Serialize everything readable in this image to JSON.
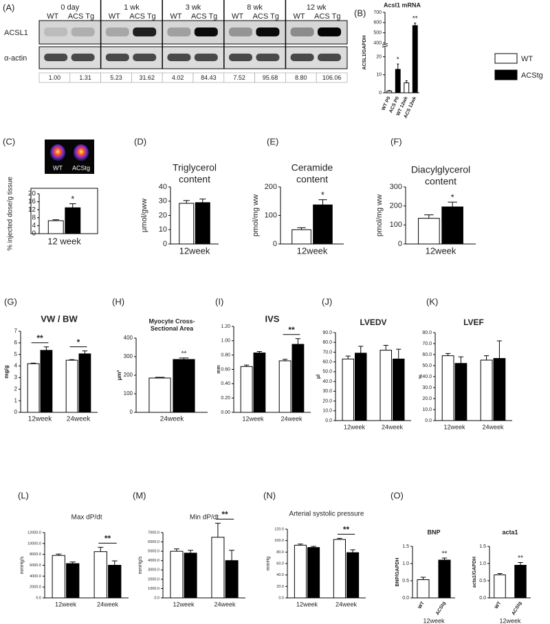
{
  "blot": {
    "panel": "(A)",
    "groups": [
      "0 day",
      "1 wk",
      "3 wk",
      "8 wk",
      "12 wk"
    ],
    "lanes": [
      "WT",
      "ACS Tg"
    ],
    "rows": [
      "ACSL1",
      "α-actin"
    ],
    "quantification": [
      "1.00",
      "1.31",
      "5.23",
      "31.62",
      "4.02",
      "84.43",
      "7.52",
      "95.68",
      "8.80",
      "106.06"
    ]
  },
  "legend": [
    {
      "name": "WT",
      "color": "#ffffff"
    },
    {
      "name": "ACStg",
      "color": "#000000"
    }
  ],
  "chart_data": [
    {
      "panel": "(B)",
      "type": "bar",
      "title": "Acsl1 mRNA",
      "ylabel": "ACSL1/GAPDH",
      "categories": [
        "WT P0",
        "ACS P0",
        "WT 12wk",
        "ACS 12wk"
      ],
      "values": [
        1,
        13,
        5.5,
        570
      ],
      "errors": [
        0.3,
        3,
        1.2,
        25
      ],
      "colors": [
        "#ffffff",
        "#000000",
        "#ffffff",
        "#000000"
      ],
      "ylim": [
        0,
        700
      ],
      "ybreak": [
        25,
        400
      ],
      "yticks": [
        0,
        10,
        20,
        400,
        500,
        600,
        700
      ],
      "xtick_rotation": -65,
      "annotations": [
        {
          "text": "*",
          "category": 1
        },
        {
          "text": "**",
          "category": 3
        }
      ]
    },
    {
      "panel": "(C)",
      "type": "bar",
      "image_labels": [
        "WT",
        "ACStg"
      ],
      "ylabel": "% injected dose/g tissue",
      "xlabel": "12 week",
      "categories": [
        null
      ],
      "series": [
        {
          "color": "#ffffff",
          "values": [
            6.5
          ],
          "errors": [
            0.5
          ]
        },
        {
          "color": "#000000",
          "values": [
            13
          ],
          "errors": [
            2
          ]
        }
      ],
      "ylim": [
        0,
        20
      ],
      "yticks": [
        0,
        4,
        8,
        12,
        16,
        20
      ],
      "annotations": [
        {
          "text": "*",
          "category": 0,
          "series": 1
        }
      ]
    },
    {
      "panel": "(D)",
      "type": "bar",
      "title": [
        "Triglycerol",
        "content"
      ],
      "ylabel": "μmol/gww",
      "xlabel": "12week",
      "categories": [
        null
      ],
      "series": [
        {
          "color": "#ffffff",
          "values": [
            28.5
          ],
          "errors": [
            2
          ]
        },
        {
          "color": "#000000",
          "values": [
            29
          ],
          "errors": [
            2.5
          ]
        }
      ],
      "ylim": [
        0,
        40
      ],
      "yticks": [
        0,
        10,
        20,
        30,
        40
      ],
      "annotations": []
    },
    {
      "panel": "(E)",
      "type": "bar",
      "title": [
        "Ceramide",
        "content"
      ],
      "ylabel": "pmol/mg ww",
      "xlabel": "12week",
      "categories": [
        null
      ],
      "series": [
        {
          "color": "#ffffff",
          "values": [
            50
          ],
          "errors": [
            7
          ]
        },
        {
          "color": "#000000",
          "values": [
            137
          ],
          "errors": [
            18
          ]
        }
      ],
      "ylim": [
        0,
        200
      ],
      "yticks": [
        0,
        100,
        200
      ],
      "annotations": [
        {
          "text": "*",
          "category": 0,
          "series": 1
        }
      ]
    },
    {
      "panel": "(F)",
      "type": "bar",
      "title": [
        "Diacylglycerol",
        "content"
      ],
      "ylabel": "pmol/mg ww",
      "xlabel": "12week",
      "categories": [
        null
      ],
      "series": [
        {
          "color": "#ffffff",
          "values": [
            135
          ],
          "errors": [
            18
          ]
        },
        {
          "color": "#000000",
          "values": [
            195
          ],
          "errors": [
            25
          ]
        }
      ],
      "ylim": [
        0,
        300
      ],
      "yticks": [
        0,
        100,
        200,
        300
      ],
      "annotations": [
        {
          "text": "*",
          "category": 0,
          "series": 1
        }
      ]
    },
    {
      "panel": "(G)",
      "type": "bar",
      "title": "VW / BW",
      "ylabel": "mg/g",
      "categories": [
        "12week",
        "24week"
      ],
      "series": [
        {
          "color": "#ffffff",
          "values": [
            4.2,
            4.5
          ],
          "errors": [
            0.05,
            0.05
          ]
        },
        {
          "color": "#000000",
          "values": [
            5.35,
            5.05
          ],
          "errors": [
            0.3,
            0.25
          ]
        }
      ],
      "ylim": [
        0,
        7
      ],
      "yticks": [
        0,
        1,
        2,
        3,
        4,
        5,
        6,
        7
      ],
      "annotations": [
        {
          "text": "**",
          "category": 0,
          "bracket": true
        },
        {
          "text": "*",
          "category": 1,
          "bracket": true
        }
      ]
    },
    {
      "panel": "(H)",
      "type": "bar",
      "title": [
        "Myocyte Cross-",
        "Sectional Area"
      ],
      "ylabel": "μm²",
      "categories": [
        "24week"
      ],
      "series": [
        {
          "color": "#ffffff",
          "values": [
            185
          ],
          "errors": [
            4
          ]
        },
        {
          "color": "#000000",
          "values": [
            285
          ],
          "errors": [
            8
          ]
        }
      ],
      "ylim": [
        0,
        400
      ],
      "yticks": [
        0,
        100,
        200,
        300,
        400
      ],
      "annotations": [
        {
          "text": "**",
          "category": 0,
          "series": 1
        }
      ]
    },
    {
      "panel": "(I)",
      "type": "bar",
      "title": "IVS",
      "ylabel": "mm",
      "categories": [
        "12week",
        "24week"
      ],
      "series": [
        {
          "color": "#ffffff",
          "values": [
            0.64,
            0.72
          ],
          "errors": [
            0.02,
            0.02
          ]
        },
        {
          "color": "#000000",
          "values": [
            0.83,
            0.95
          ],
          "errors": [
            0.02,
            0.08
          ]
        }
      ],
      "ylim": [
        0,
        1.2
      ],
      "yticks": [
        {
          "value": 0,
          "label": "0.00"
        },
        {
          "value": 0.2,
          "label": "0.20"
        },
        {
          "value": 0.4,
          "label": "0.40"
        },
        {
          "value": 0.6,
          "label": "0.60"
        },
        {
          "value": 0.8,
          "label": "0.80"
        },
        {
          "value": 1,
          "label": "1.00"
        },
        {
          "value": 1.2,
          "label": "1.20"
        }
      ],
      "annotations": [
        {
          "text": "**",
          "category": 1,
          "bracket": true
        }
      ]
    },
    {
      "panel": "(J)",
      "type": "bar",
      "title": "LVEDV",
      "ylabel": "μl",
      "categories": [
        "12week",
        "24week"
      ],
      "series": [
        {
          "color": "#ffffff",
          "values": [
            63,
            72
          ],
          "errors": [
            3,
            5
          ]
        },
        {
          "color": "#000000",
          "values": [
            69,
            63
          ],
          "errors": [
            7,
            10
          ]
        }
      ],
      "ylim": [
        0,
        90
      ],
      "yticks": [
        {
          "value": 0,
          "label": "0.0"
        },
        {
          "value": 10,
          "label": "10.0"
        },
        {
          "value": 20,
          "label": "20.0"
        },
        {
          "value": 30,
          "label": "30.0"
        },
        {
          "value": 40,
          "label": "40.0"
        },
        {
          "value": 50,
          "label": "50.0"
        },
        {
          "value": 60,
          "label": "60.0"
        },
        {
          "value": 70,
          "label": "70.0"
        },
        {
          "value": 80,
          "label": "80.0"
        },
        {
          "value": 90,
          "label": "90.0"
        }
      ],
      "annotations": []
    },
    {
      "panel": "(K)",
      "type": "bar",
      "title": "LVEF",
      "ylabel": "%",
      "categories": [
        "12week",
        "24week"
      ],
      "series": [
        {
          "color": "#ffffff",
          "values": [
            59,
            55
          ],
          "errors": [
            2,
            4
          ]
        },
        {
          "color": "#000000",
          "values": [
            52,
            56.5
          ],
          "errors": [
            6,
            16
          ]
        }
      ],
      "ylim": [
        0,
        80
      ],
      "yticks": [
        {
          "value": 0,
          "label": "0.0"
        },
        {
          "value": 10,
          "label": "10.0"
        },
        {
          "value": 20,
          "label": "20.0"
        },
        {
          "value": 30,
          "label": "30.0"
        },
        {
          "value": 40,
          "label": "40.0"
        },
        {
          "value": 50,
          "label": "50.0"
        },
        {
          "value": 60,
          "label": "60.0"
        },
        {
          "value": 70,
          "label": "70.0"
        },
        {
          "value": 80,
          "label": "80.0"
        }
      ],
      "annotations": []
    },
    {
      "panel": "(L)",
      "type": "bar",
      "title": "Max dP/dt",
      "ylabel": "mmHg/s",
      "categories": [
        "12week",
        "24week"
      ],
      "series": [
        {
          "color": "#ffffff",
          "values": [
            7800,
            8500
          ],
          "errors": [
            250,
            800
          ]
        },
        {
          "color": "#000000",
          "values": [
            6300,
            6000
          ],
          "errors": [
            300,
            800
          ]
        }
      ],
      "ylim": [
        0,
        12000
      ],
      "yticks": [
        {
          "value": 0,
          "label": "0.0"
        },
        {
          "value": 2000,
          "label": "2000.0"
        },
        {
          "value": 4000,
          "label": "4000.0"
        },
        {
          "value": 6000,
          "label": "6000.0"
        },
        {
          "value": 8000,
          "label": "8000.0"
        },
        {
          "value": 10000,
          "label": "10000.0"
        },
        {
          "value": 12000,
          "label": "12000.0"
        }
      ],
      "annotations": [
        {
          "text": "**",
          "category": 1,
          "bracket": true
        }
      ]
    },
    {
      "panel": "(M)",
      "type": "bar",
      "title": "Min dP/dt",
      "ylabel": "mmHg/s",
      "categories": [
        "12week",
        "24week"
      ],
      "series": [
        {
          "color": "#ffffff",
          "values": [
            5000,
            6500
          ],
          "errors": [
            250,
            1500
          ]
        },
        {
          "color": "#000000",
          "values": [
            4800,
            4000
          ],
          "errors": [
            300,
            1100
          ]
        }
      ],
      "ylim": [
        0,
        7000
      ],
      "yticks": [
        {
          "value": 0,
          "label": "0.0"
        },
        {
          "value": 1000,
          "label": "1000.0"
        },
        {
          "value": 2000,
          "label": "2000.0"
        },
        {
          "value": 3000,
          "label": "3000.0"
        },
        {
          "value": 4000,
          "label": "4000.0"
        },
        {
          "value": 5000,
          "label": "5000.0"
        },
        {
          "value": 6000,
          "label": "6000.0"
        },
        {
          "value": 7000,
          "label": "7000.0"
        }
      ],
      "annotations": [
        {
          "text": "**",
          "category": 1,
          "bracket": true
        }
      ]
    },
    {
      "panel": "(N)",
      "type": "bar",
      "title": "Arterial systolic pressure",
      "ylabel": "mmHg",
      "categories": [
        "12week",
        "24week"
      ],
      "series": [
        {
          "color": "#ffffff",
          "values": [
            92,
            102
          ],
          "errors": [
            2,
            2
          ]
        },
        {
          "color": "#000000",
          "values": [
            88,
            79
          ],
          "errors": [
            2,
            5
          ]
        }
      ],
      "ylim": [
        0,
        120
      ],
      "yticks": [
        {
          "value": 0,
          "label": "0.0"
        },
        {
          "value": 20,
          "label": "20.0"
        },
        {
          "value": 40,
          "label": "40.0"
        },
        {
          "value": 60,
          "label": "60.0"
        },
        {
          "value": 80,
          "label": "80.0"
        },
        {
          "value": 100,
          "label": "100.0"
        },
        {
          "value": 120,
          "label": "120.0"
        }
      ],
      "annotations": [
        {
          "text": "**",
          "category": 1,
          "bracket": true
        }
      ]
    },
    {
      "panel": "(O)",
      "type": "bar",
      "title": "BNP",
      "ylabel": "BNP/GAPDH",
      "xlabel": "12week",
      "categories": [
        "WT",
        "ACStg"
      ],
      "values": [
        0.53,
        1.1
      ],
      "errors": [
        0.07,
        0.06
      ],
      "colors": [
        "#ffffff",
        "#000000"
      ],
      "ylim": [
        0,
        1.5
      ],
      "yticks": [
        {
          "value": 0,
          "label": "0.0"
        },
        {
          "value": 0.5,
          "label": "0.5"
        },
        {
          "value": 1,
          "label": "1.0"
        },
        {
          "value": 1.5,
          "label": "1.5"
        }
      ],
      "xtick_rotation": -60,
      "annotations": [
        {
          "text": "**",
          "category": 1
        }
      ]
    },
    {
      "type": "bar",
      "title": "acta1",
      "ylabel": "acta1/GAPDH",
      "xlabel": "12week",
      "categories": [
        "WT",
        "ACStg"
      ],
      "values": [
        0.67,
        0.95
      ],
      "errors": [
        0.04,
        0.08
      ],
      "colors": [
        "#ffffff",
        "#000000"
      ],
      "ylim": [
        0,
        1.5
      ],
      "yticks": [
        {
          "value": 0,
          "label": "0.0"
        },
        {
          "value": 0.5,
          "label": "0.5"
        },
        {
          "value": 1,
          "label": "1.0"
        },
        {
          "value": 1.5,
          "label": "1.5"
        }
      ],
      "xtick_rotation": -60,
      "annotations": [
        {
          "text": "**",
          "category": 1
        }
      ]
    }
  ]
}
